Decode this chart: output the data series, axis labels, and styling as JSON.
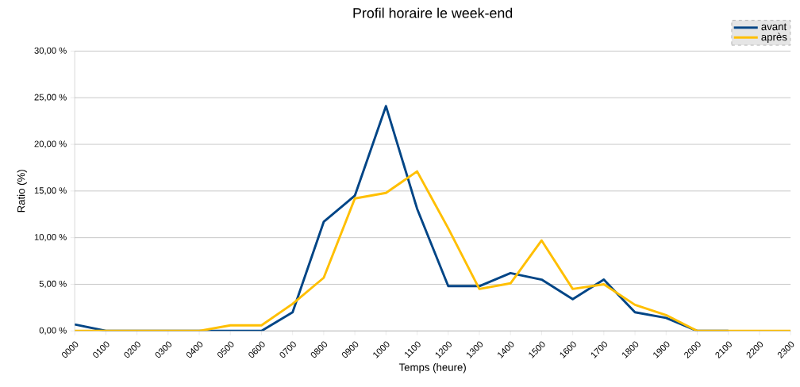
{
  "chart_data": {
    "type": "line",
    "title": "Profil horaire le week-end",
    "xlabel": "Temps (heure)",
    "ylabel": "Ratio (%)",
    "categories": [
      "0000",
      "0100",
      "0200",
      "0300",
      "0400",
      "0500",
      "0600",
      "0700",
      "0800",
      "0900",
      "1000",
      "1100",
      "1200",
      "1300",
      "1400",
      "1500",
      "1600",
      "1700",
      "1800",
      "1900",
      "2000",
      "2100",
      "2200",
      "2300"
    ],
    "series": [
      {
        "name": "avant",
        "color": "#004586",
        "values": [
          0.7,
          0,
          0,
          0,
          0,
          0,
          0,
          2.0,
          11.7,
          14.5,
          24.1,
          13.1,
          4.8,
          4.8,
          6.2,
          5.5,
          3.4,
          5.5,
          2.0,
          1.4,
          0,
          0,
          null,
          null
        ]
      },
      {
        "name": "après",
        "color": "#ffbf00",
        "values": [
          0,
          0,
          0,
          0,
          0,
          0.6,
          0.6,
          2.9,
          5.7,
          14.2,
          14.8,
          17.1,
          11.0,
          4.5,
          5.1,
          9.7,
          4.5,
          5.0,
          2.8,
          1.7,
          0,
          0,
          0,
          0
        ]
      }
    ],
    "ylim": [
      0,
      30
    ],
    "yticks": [
      {
        "value": 0,
        "label": "0,00 %"
      },
      {
        "value": 5,
        "label": "5,00 %"
      },
      {
        "value": 10,
        "label": "10,00 %"
      },
      {
        "value": 15,
        "label": "15,00 %"
      },
      {
        "value": 20,
        "label": "20,00 %"
      },
      {
        "value": 25,
        "label": "25,00 %"
      },
      {
        "value": 30,
        "label": "30,00 %"
      }
    ],
    "grid": "y",
    "legend": "top right",
    "line_style": "solid"
  }
}
